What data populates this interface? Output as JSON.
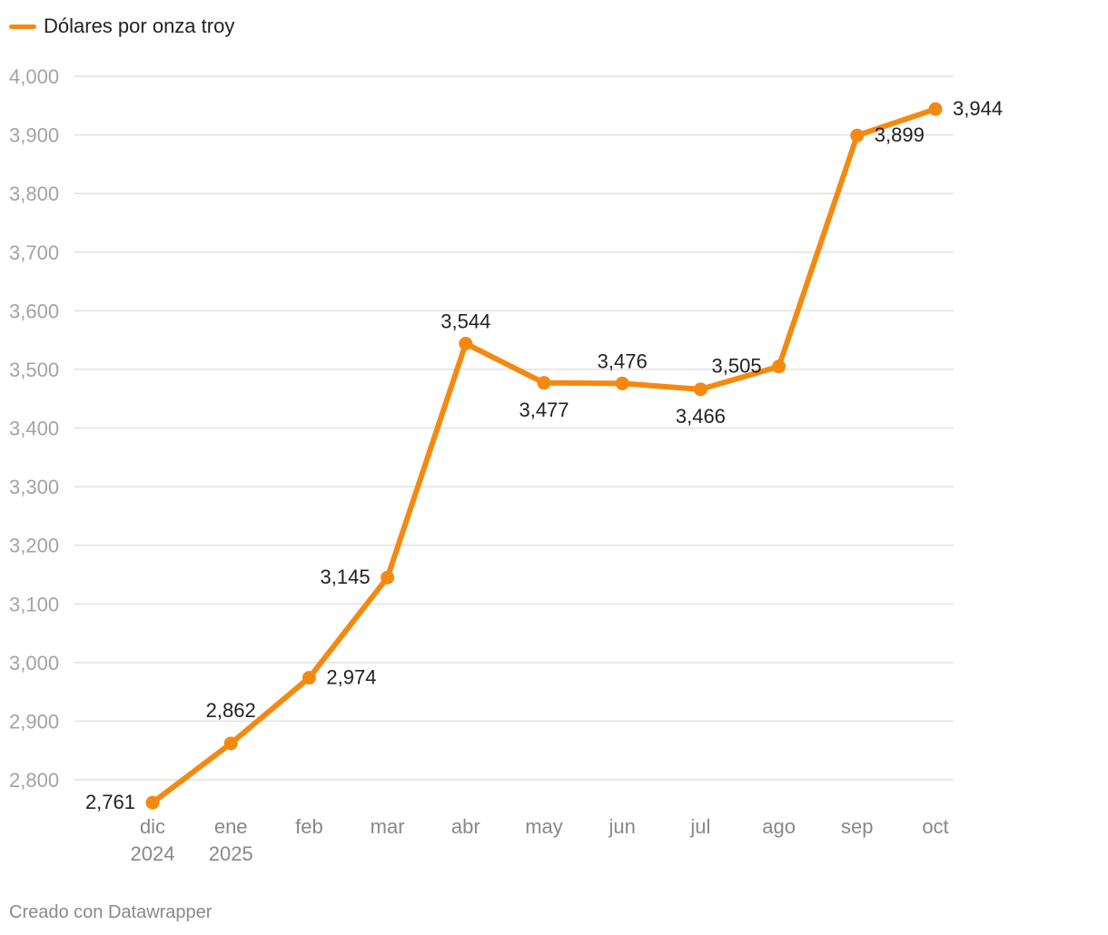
{
  "chart_data": {
    "type": "line",
    "title": "",
    "xlabel": "",
    "ylabel": "",
    "categories": [
      [
        "dic",
        "2024"
      ],
      [
        "ene",
        "2025"
      ],
      [
        "feb"
      ],
      [
        "mar"
      ],
      [
        "abr"
      ],
      [
        "may"
      ],
      [
        "jun"
      ],
      [
        "jul"
      ],
      [
        "ago"
      ],
      [
        "sep"
      ],
      [
        "oct"
      ]
    ],
    "series": [
      {
        "name": "Dólares por onza troy",
        "color": "#f5890f",
        "values": [
          2761,
          2862,
          2974,
          3145,
          3544,
          3477,
          3476,
          3466,
          3505,
          3899,
          3944
        ],
        "value_labels": [
          "2,761",
          "2,862",
          "2,974",
          "3,145",
          "3,544",
          "3,477",
          "3,476",
          "3,466",
          "3,505",
          "3,899",
          "3,944"
        ]
      }
    ],
    "ylim": [
      2800,
      4000
    ],
    "yticks": [
      2800,
      2900,
      3000,
      3100,
      3200,
      3300,
      3400,
      3500,
      3600,
      3700,
      3800,
      3900,
      4000
    ],
    "ytick_labels": [
      "2,800",
      "2,900",
      "3,000",
      "3,100",
      "3,200",
      "3,300",
      "3,400",
      "3,500",
      "3,600",
      "3,700",
      "3,800",
      "3,900",
      "4,000"
    ],
    "grid": true,
    "legend": "top-left"
  },
  "footer": {
    "credit": "Creado con Datawrapper"
  }
}
